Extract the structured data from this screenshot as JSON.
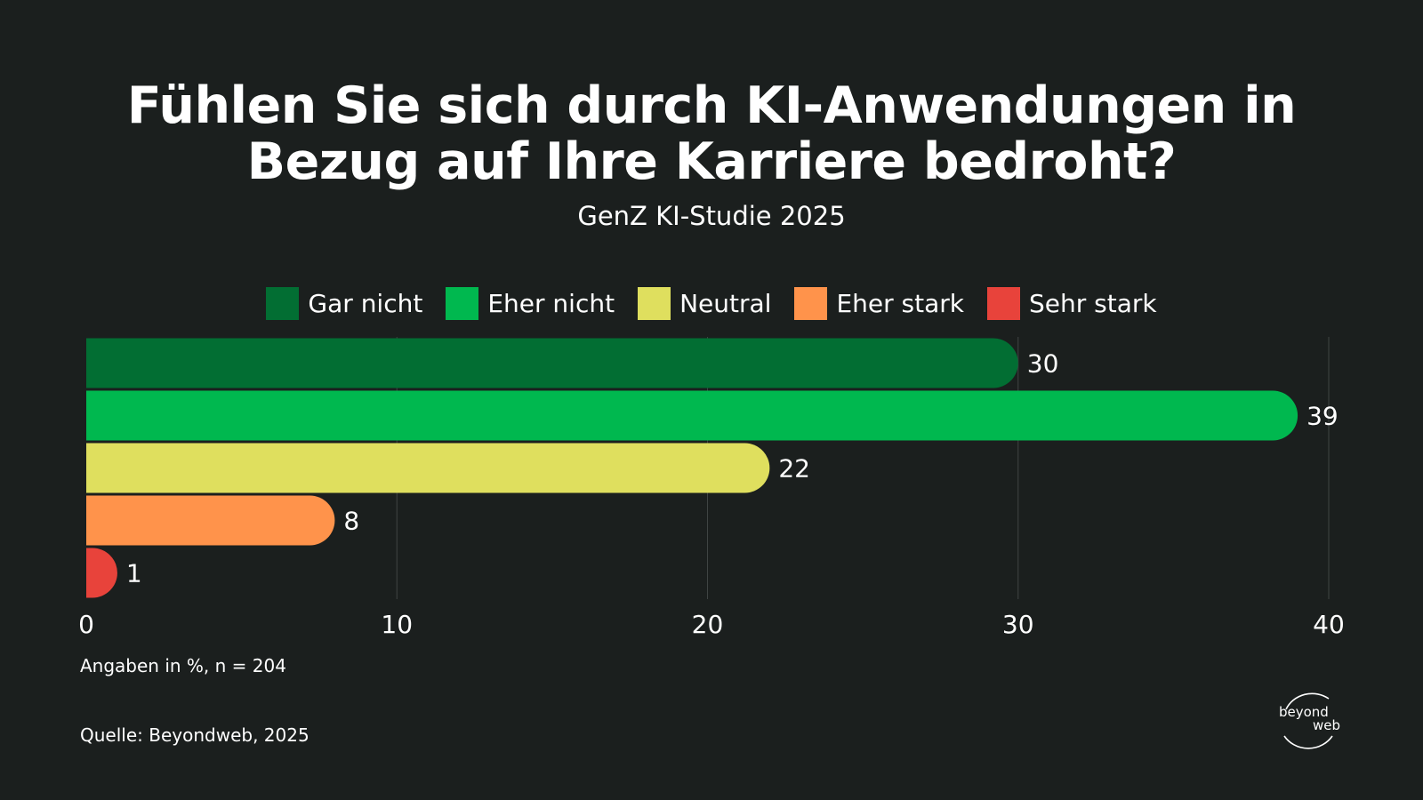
{
  "title_line1": "Fühlen Sie sich durch KI-Anwendungen in",
  "title_line2": "Bezug auf Ihre Karriere bedroht?",
  "subtitle": "GenZ KI-Studie 2025",
  "footnote": "Angaben in %, n = 204",
  "source": "Quelle: Beyondweb, 2025",
  "logo": {
    "line1": "beyond",
    "line2": "web"
  },
  "chart_data": {
    "type": "bar",
    "orientation": "horizontal",
    "categories": [
      "Gar nicht",
      "Eher nicht",
      "Neutral",
      "Eher stark",
      "Sehr stark"
    ],
    "values": [
      30,
      39,
      22,
      8,
      1
    ],
    "colors": [
      "#026e33",
      "#00b84f",
      "#dfdf5e",
      "#ff934b",
      "#e8433b"
    ],
    "xlim": [
      0,
      40
    ],
    "xticks": [
      0,
      10,
      20,
      30,
      40
    ],
    "grid": true,
    "legend": "top-center"
  }
}
